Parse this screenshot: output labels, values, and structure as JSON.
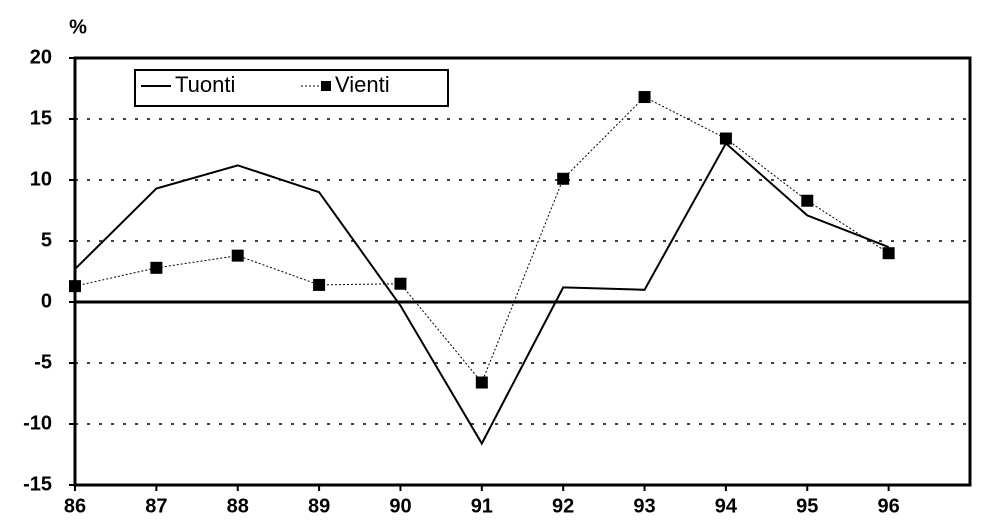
{
  "chart_data": {
    "type": "line",
    "y_label": "%",
    "x": [
      86,
      87,
      88,
      89,
      90,
      91,
      92,
      93,
      94,
      95,
      96
    ],
    "xlim": [
      86,
      97
    ],
    "xticks": [
      86,
      87,
      88,
      89,
      90,
      91,
      92,
      93,
      94,
      95,
      96
    ],
    "ylim": [
      -15,
      20
    ],
    "yticks": [
      -15,
      -10,
      -5,
      0,
      5,
      10,
      15,
      20
    ],
    "grid": true,
    "legend": "upper left",
    "series": [
      {
        "name": "Tuonti",
        "color": "#000000",
        "line_style": "solid",
        "marker": "none",
        "values": [
          2.7,
          9.3,
          11.2,
          9.0,
          -0.3,
          -11.6,
          1.2,
          1.0,
          13.0,
          7.1,
          4.5
        ]
      },
      {
        "name": "Vienti",
        "color": "#000000",
        "line_style": "dotted",
        "marker": "square",
        "values": [
          1.3,
          2.8,
          3.8,
          1.4,
          1.5,
          -6.6,
          10.1,
          16.8,
          13.4,
          8.3,
          4.0
        ]
      }
    ]
  }
}
